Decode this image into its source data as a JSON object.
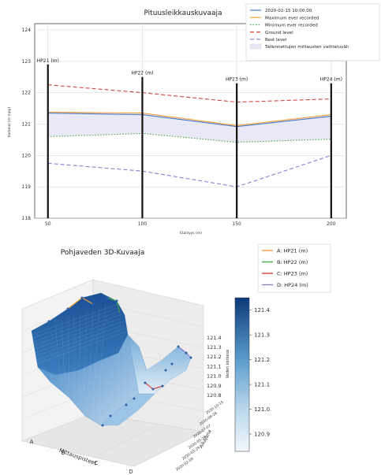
{
  "chart_data": [
    {
      "type": "line",
      "title": "Pituusleikkauskuvaaja",
      "xlabel": "Etaisyys (m)",
      "ylabel": "Korkeus (m mpy)",
      "x_ticks": [
        50,
        100,
        150,
        200
      ],
      "y_ticks": [
        118,
        119,
        120,
        121,
        122,
        123,
        124
      ],
      "xlim": [
        43,
        208
      ],
      "ylim": [
        118,
        124.2
      ],
      "grid": true,
      "legend_position": "top-right",
      "x": [
        50,
        100,
        150,
        200
      ],
      "series": [
        {
          "name": "2020-02-15 10:00:00",
          "color": "#4a7cc4",
          "style": "solid",
          "values": [
            121.35,
            121.3,
            120.92,
            121.25
          ]
        },
        {
          "name": "Maximum ever recorded",
          "color": "#f5a03c",
          "style": "solid",
          "values": [
            121.38,
            121.35,
            120.95,
            121.3
          ]
        },
        {
          "name": "Minimum ever recorded",
          "color": "#44a844",
          "style": "dotted",
          "values": [
            120.6,
            120.7,
            120.42,
            120.52
          ]
        },
        {
          "name": "Ground level",
          "color": "#d8453c",
          "style": "dashed",
          "values": [
            122.25,
            122.0,
            121.7,
            121.8
          ]
        },
        {
          "name": "Rest level",
          "color": "#8b7fd0",
          "style": "dashed",
          "values": [
            119.75,
            119.5,
            119.0,
            120.0
          ]
        }
      ],
      "band": {
        "name": "Tallennettujen mittausten vaihteluväli",
        "color": "#e6e6f5",
        "upper": [
          121.38,
          121.35,
          120.95,
          121.3
        ],
        "lower": [
          120.6,
          120.7,
          120.42,
          120.52
        ]
      },
      "wells": [
        {
          "label": "HP21 (m)",
          "x": 50,
          "top": 122.9
        },
        {
          "label": "HP22 (m)",
          "x": 100,
          "top": 122.5
        },
        {
          "label": "HP23 (m)",
          "x": 150,
          "top": 122.3
        },
        {
          "label": "HP24 (m)",
          "x": 200,
          "top": 122.3
        }
      ]
    },
    {
      "type": "surface",
      "title": "Pohjaveden 3D-Kuvaaja",
      "x_axis_label": "Mittauspisteet",
      "x_ticks": [
        "A",
        "B",
        "C",
        "D"
      ],
      "y_axis_label": "Aikajana",
      "y_ticks": [
        "2020-02-09",
        "2020-03-29",
        "2020-05-18",
        "2020-07-07",
        "2020-08-26",
        "2020-10-15"
      ],
      "z_axis_label": "Veden korkeus",
      "z_ticks": [
        120.8,
        120.9,
        121.0,
        121.1,
        121.2,
        121.3,
        121.4
      ],
      "colorbar_ticks": [
        120.9,
        121.0,
        121.1,
        121.2,
        121.3,
        121.4
      ],
      "colorbar_range": [
        120.83,
        121.45
      ],
      "legend": [
        {
          "name": "A: HP21 (m)",
          "color": "#f5a03c"
        },
        {
          "name": "B: HP22 (m)",
          "color": "#44a844"
        },
        {
          "name": "C: HP23 (m)",
          "color": "#d8453c"
        },
        {
          "name": "D: HP24 (m)",
          "color": "#8b7fd0"
        }
      ]
    }
  ]
}
